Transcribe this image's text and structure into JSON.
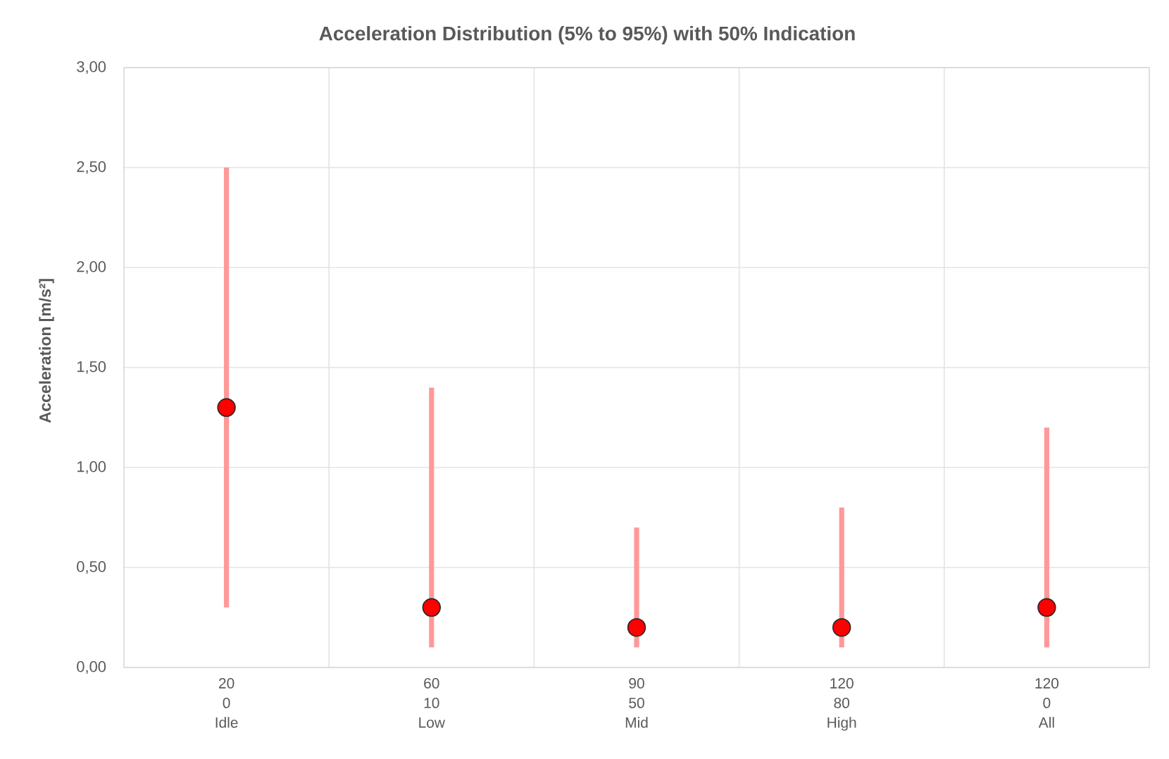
{
  "chart_data": {
    "type": "bar",
    "title": "Acceleration Distribution (5% to 95%) with 50% Indication",
    "ylabel": "Acceleration [m/s²]",
    "categories": [
      "20\n0\nIdle",
      "60\n10\nLow",
      "90\n50\nMid",
      "120\n80\nHigh",
      "120\n0\nAll"
    ],
    "series": [
      {
        "color": "#ff9999",
        "base": [
          0.3,
          0.1,
          0.1,
          0.1,
          0.1
        ],
        "values": [
          2.2,
          1.3,
          0.6,
          0.7,
          1.1
        ]
      },
      {
        "type": "scatter",
        "color": "#ff0000",
        "values": [
          1.3,
          0.3,
          0.2,
          0.2,
          0.3
        ]
      }
    ],
    "ylim": [
      0,
      3
    ],
    "yticks": [
      {
        "value": 0,
        "label": "0,00"
      },
      {
        "value": 0.5,
        "label": "0,50"
      },
      {
        "value": 1,
        "label": "1,00"
      },
      {
        "value": 1.5,
        "label": "1,50"
      },
      {
        "value": 2,
        "label": "2,00"
      },
      {
        "value": 2.5,
        "label": "2,50"
      },
      {
        "value": 3,
        "label": "3,00"
      }
    ],
    "grid": true,
    "marker": "circle"
  }
}
